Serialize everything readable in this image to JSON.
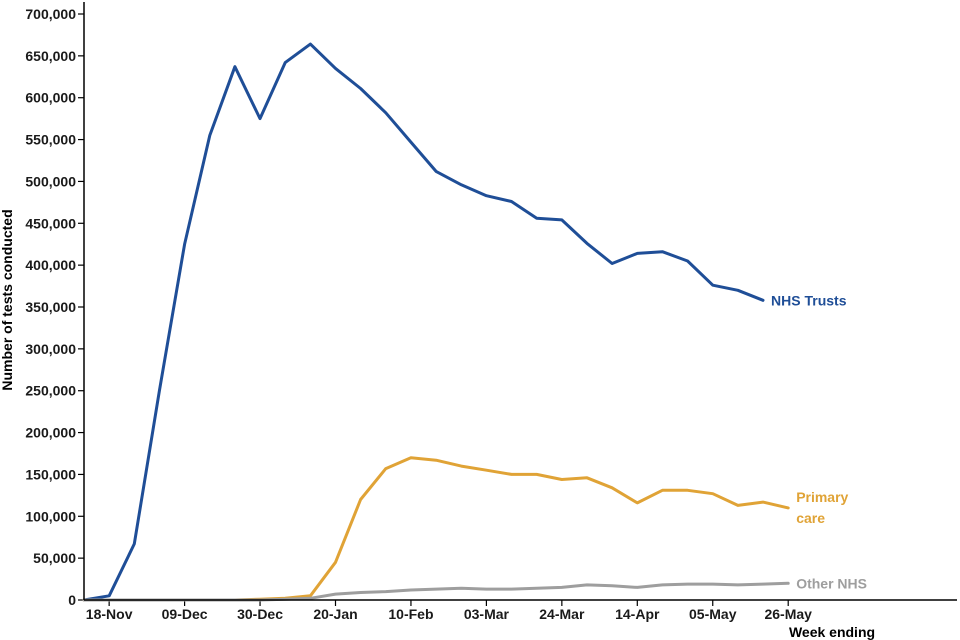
{
  "chart_data": {
    "type": "line",
    "title": "",
    "xlabel": "Week ending",
    "ylabel": "Number of tests conducted",
    "ylim": [
      0,
      700000
    ],
    "yticks": [
      0,
      50000,
      100000,
      150000,
      200000,
      250000,
      300000,
      350000,
      400000,
      450000,
      500000,
      550000,
      600000,
      650000,
      700000
    ],
    "ytick_labels": [
      "0",
      "50,000",
      "100,000",
      "150,000",
      "200,000",
      "250,000",
      "300,000",
      "350,000",
      "400,000",
      "450,000",
      "500,000",
      "550,000",
      "600,000",
      "650,000",
      "700,000"
    ],
    "x": [
      "11-Nov",
      "18-Nov",
      "25-Nov",
      "02-Dec",
      "09-Dec",
      "16-Dec",
      "23-Dec",
      "30-Dec",
      "06-Jan",
      "13-Jan",
      "20-Jan",
      "27-Jan",
      "03-Feb",
      "10-Feb",
      "17-Feb",
      "24-Feb",
      "03-Mar",
      "10-Mar",
      "17-Mar",
      "24-Mar",
      "31-Mar",
      "07-Apr",
      "14-Apr",
      "21-Apr",
      "28-Apr",
      "05-May",
      "12-May",
      "19-May",
      "26-May"
    ],
    "xtick_labels": [
      "18-Nov",
      "09-Dec",
      "30-Dec",
      "20-Jan",
      "10-Feb",
      "03-Mar",
      "24-Mar",
      "14-Apr",
      "05-May",
      "26-May"
    ],
    "grid": false,
    "legend": "inline labels at line ends",
    "series": [
      {
        "name": "NHS Trusts",
        "color": "#1f4e97",
        "label_lines": [
          "NHS Trusts"
        ],
        "values": [
          0,
          5000,
          67000,
          250000,
          425000,
          555000,
          637000,
          575000,
          642000,
          664000,
          635000,
          611000,
          582000,
          547000,
          512000,
          496000,
          483000,
          476000,
          456000,
          454000,
          426000,
          402000,
          414000,
          416000,
          405000,
          376000,
          370000,
          358000,
          null
        ]
      },
      {
        "name": "Primary care",
        "color": "#e0a336",
        "label_lines": [
          "Primary",
          "care"
        ],
        "values": [
          0,
          0,
          0,
          0,
          0,
          0,
          0,
          1000,
          2000,
          5000,
          45000,
          120000,
          157000,
          170000,
          167000,
          160000,
          155000,
          150000,
          150000,
          144000,
          146000,
          134000,
          116000,
          131000,
          131000,
          127000,
          113000,
          117000,
          110000
        ]
      },
      {
        "name": "Other NHS",
        "color": "#9e9e9e",
        "label_lines": [
          "Other NHS"
        ],
        "values": [
          0,
          0,
          0,
          0,
          0,
          0,
          0,
          0,
          1000,
          2000,
          7000,
          9000,
          10000,
          12000,
          13000,
          14000,
          13000,
          13000,
          14000,
          15000,
          18000,
          17000,
          15000,
          18000,
          19000,
          19000,
          18000,
          19000,
          20000
        ]
      }
    ]
  }
}
